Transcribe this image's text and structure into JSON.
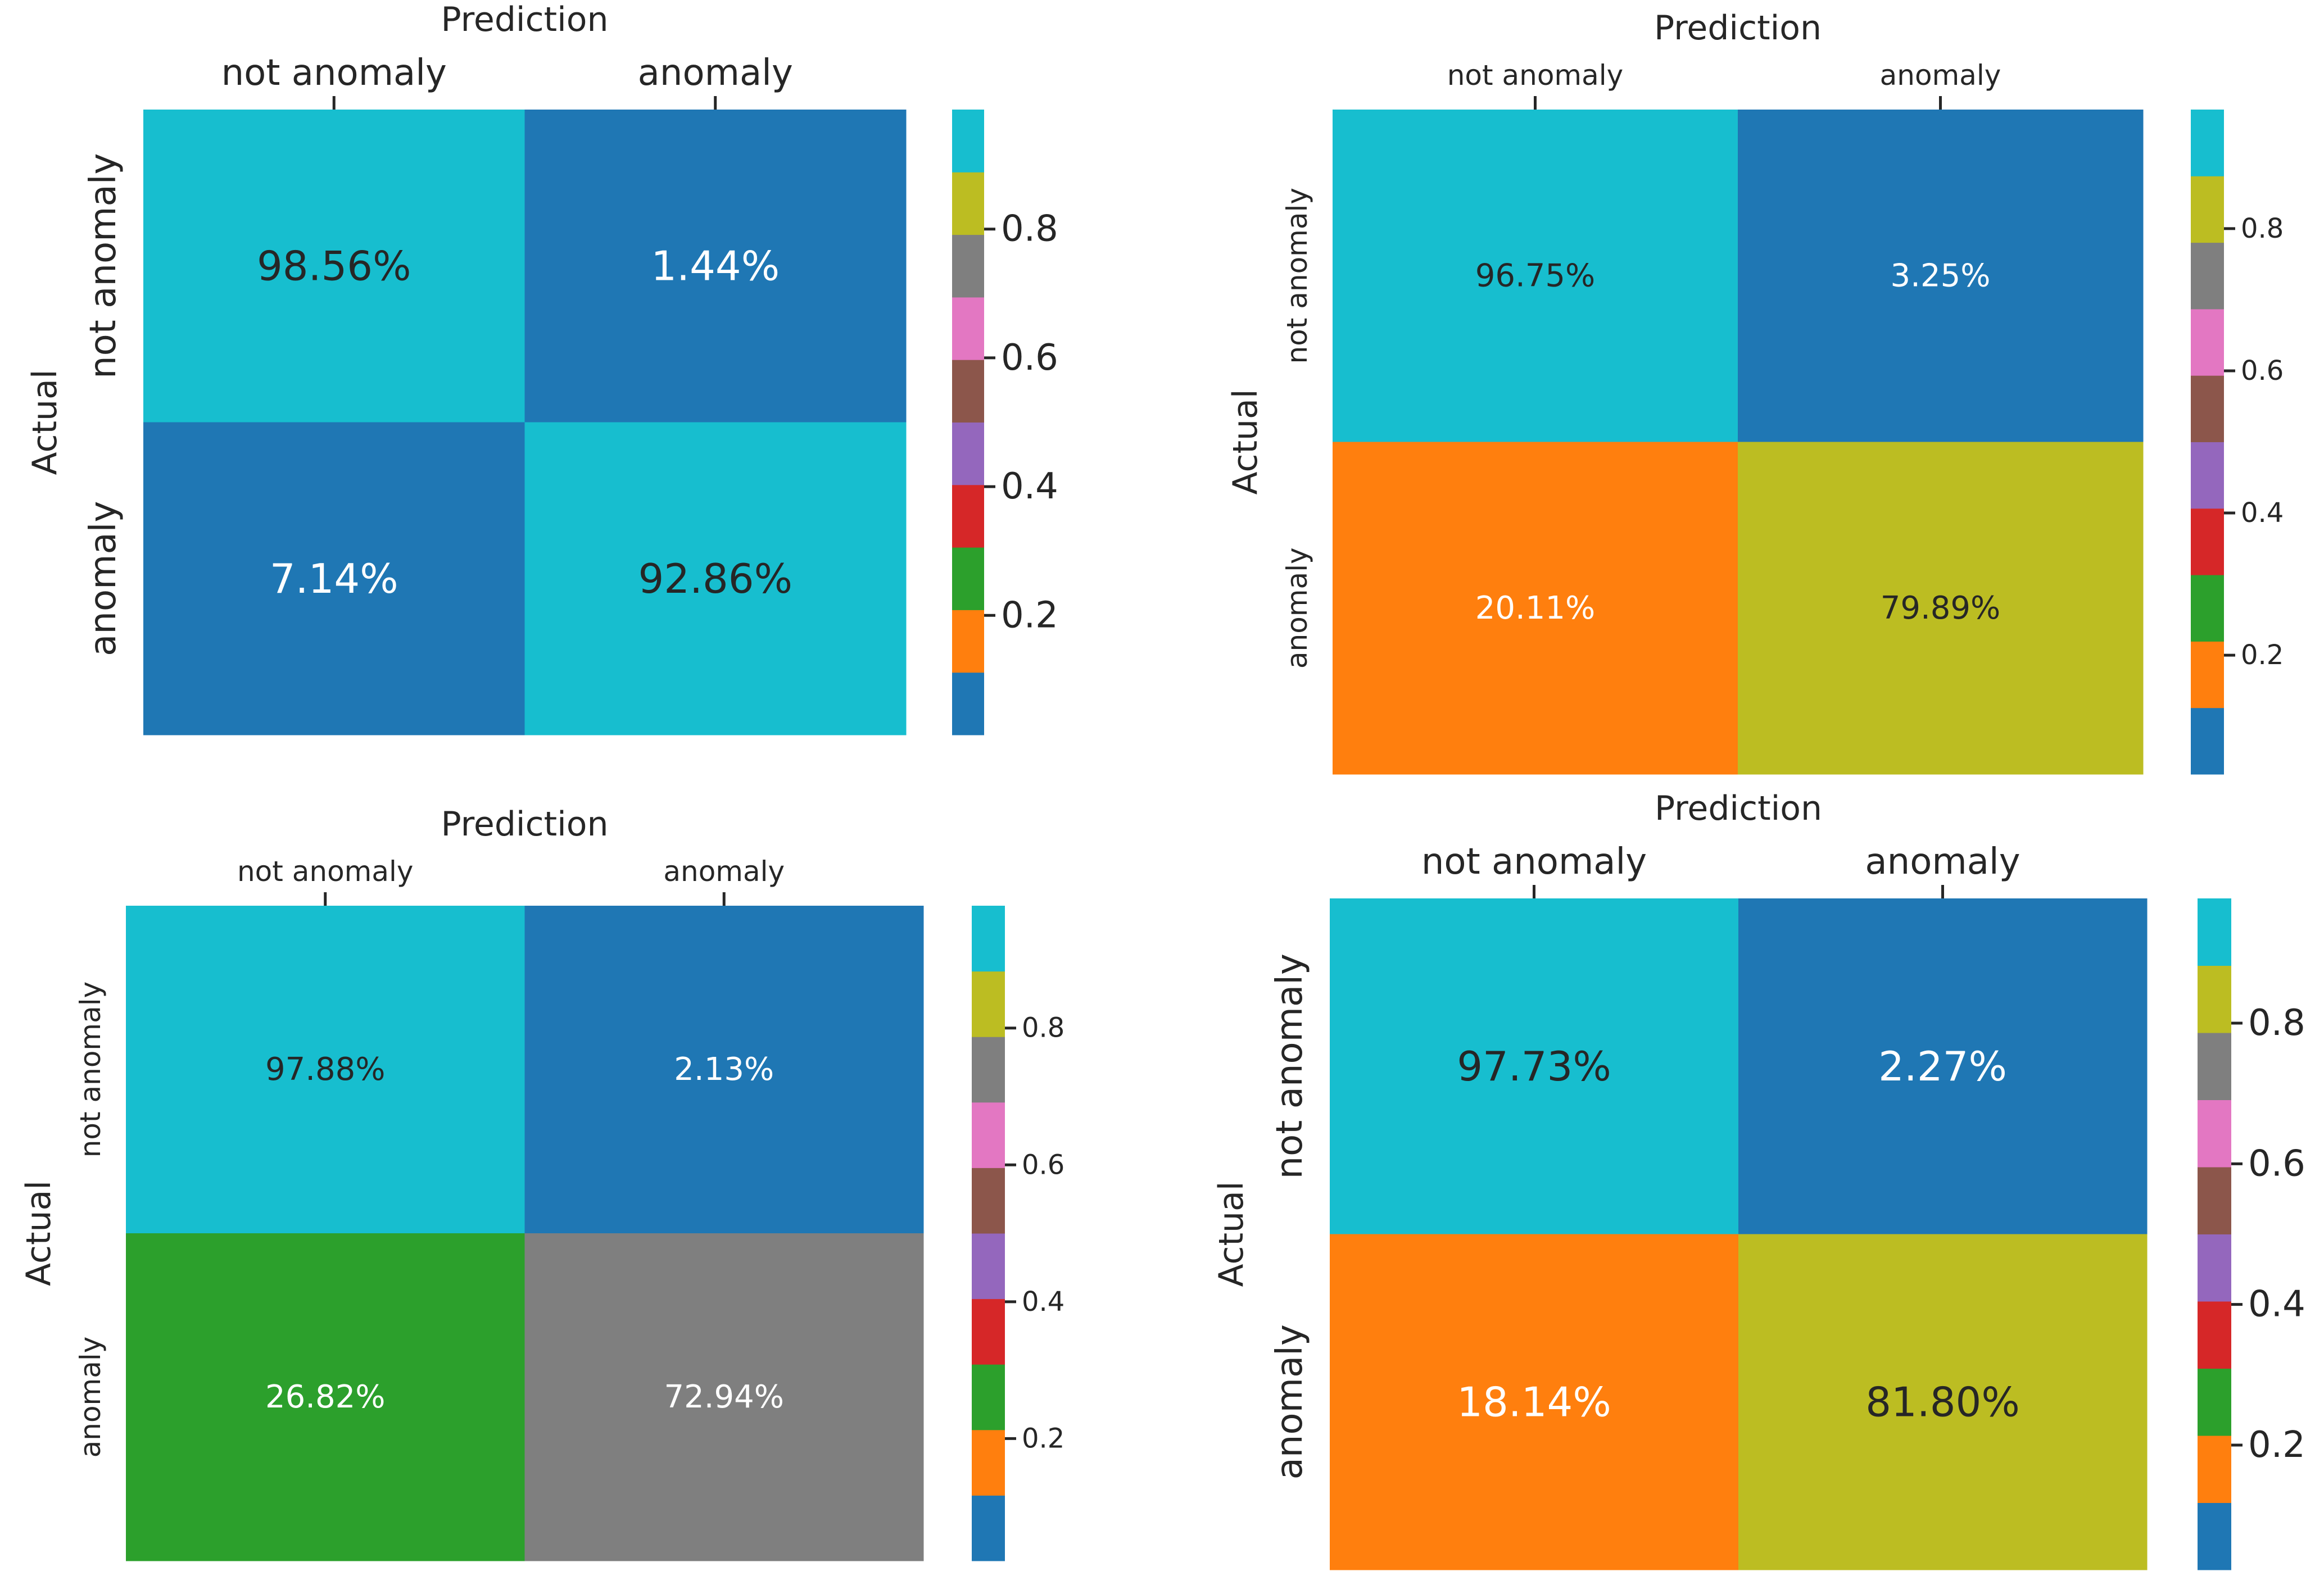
{
  "chart_data": [
    {
      "type": "heatmap",
      "xlabel": "Prediction",
      "ylabel": "Actual",
      "x_categories": [
        "not anomaly",
        "anomaly"
      ],
      "y_categories": [
        "not anomaly",
        "anomaly"
      ],
      "values": [
        [
          0.9856,
          0.0144
        ],
        [
          0.0714,
          0.9286
        ]
      ],
      "cell_labels": [
        [
          "98.56%",
          "1.44%"
        ],
        [
          "7.14%",
          "92.86%"
        ]
      ],
      "colorbar": {
        "ticks": [
          "0.2",
          "0.4",
          "0.6",
          "0.8"
        ],
        "tick_values": [
          0.2,
          0.4,
          0.6,
          0.8
        ],
        "range": [
          0.0144,
          0.9856
        ]
      }
    },
    {
      "type": "heatmap",
      "xlabel": "Prediction",
      "ylabel": "Actual",
      "x_categories": [
        "not anomaly",
        "anomaly"
      ],
      "y_categories": [
        "not anomaly",
        "anomaly"
      ],
      "values": [
        [
          0.9675,
          0.0325
        ],
        [
          0.2011,
          0.7989
        ]
      ],
      "cell_labels": [
        [
          "96.75%",
          "3.25%"
        ],
        [
          "20.11%",
          "79.89%"
        ]
      ],
      "colorbar": {
        "ticks": [
          "0.2",
          "0.4",
          "0.6",
          "0.8"
        ],
        "tick_values": [
          0.2,
          0.4,
          0.6,
          0.8
        ],
        "range": [
          0.0325,
          0.9675
        ]
      }
    },
    {
      "type": "heatmap",
      "xlabel": "Prediction",
      "ylabel": "Actual",
      "x_categories": [
        "not anomaly",
        "anomaly"
      ],
      "y_categories": [
        "not anomaly",
        "anomaly"
      ],
      "values": [
        [
          0.9788,
          0.0213
        ],
        [
          0.2682,
          0.7294
        ]
      ],
      "cell_labels": [
        [
          "97.88%",
          "2.13%"
        ],
        [
          "26.82%",
          "72.94%"
        ]
      ],
      "colorbar": {
        "ticks": [
          "0.2",
          "0.4",
          "0.6",
          "0.8"
        ],
        "tick_values": [
          0.2,
          0.4,
          0.6,
          0.8
        ],
        "range": [
          0.0213,
          0.9788
        ]
      }
    },
    {
      "type": "heatmap",
      "xlabel": "Prediction",
      "ylabel": "Actual",
      "x_categories": [
        "not anomaly",
        "anomaly"
      ],
      "y_categories": [
        "not anomaly",
        "anomaly"
      ],
      "values": [
        [
          0.9773,
          0.0227
        ],
        [
          0.1814,
          0.818
        ]
      ],
      "cell_labels": [
        [
          "97.73%",
          "2.27%"
        ],
        [
          "18.14%",
          "81.80%"
        ]
      ],
      "colorbar": {
        "ticks": [
          "0.2",
          "0.4",
          "0.6",
          "0.8"
        ],
        "tick_values": [
          0.2,
          0.4,
          0.6,
          0.8
        ],
        "range": [
          0.0227,
          0.9773
        ]
      }
    }
  ],
  "colormap": {
    "name": "tab10",
    "colors": [
      "#1f77b4",
      "#ff7f0e",
      "#2ca02c",
      "#d62728",
      "#9467bd",
      "#8c564b",
      "#e377c2",
      "#7f7f7f",
      "#bcbd22",
      "#17becf"
    ],
    "dark_text": "#262626",
    "light_text": "#ffffff"
  }
}
